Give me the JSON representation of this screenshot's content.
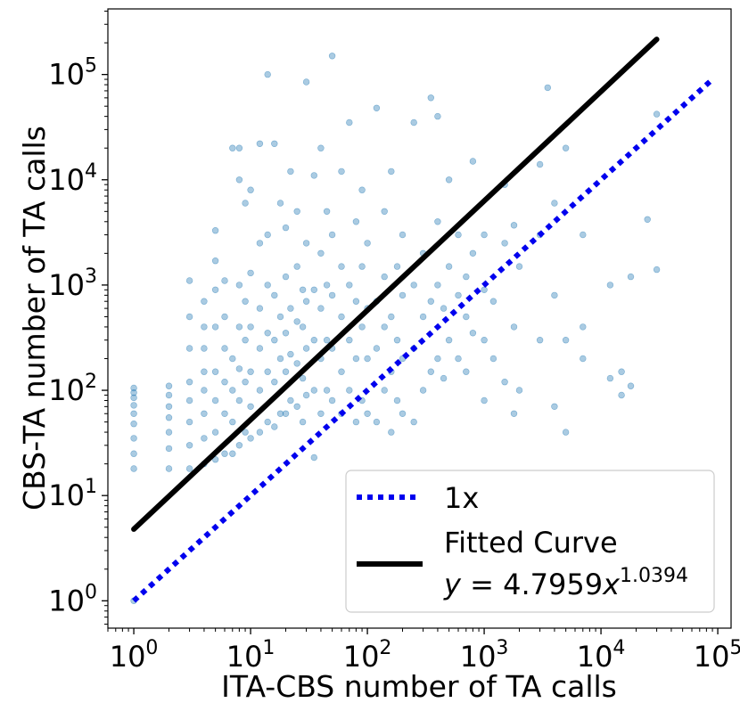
{
  "chart_data": {
    "type": "scatter",
    "title": "",
    "xlabel": "ITA-CBS number of TA calls",
    "ylabel": "CBS-TA number of TA calls",
    "x_scale": "log",
    "y_scale": "log",
    "xlim": [
      0.6,
      130000
    ],
    "ylim": [
      0.55,
      420000
    ],
    "x_tick_values": [
      1,
      10,
      100,
      1000,
      10000,
      100000
    ],
    "y_tick_values": [
      1,
      10,
      100,
      1000,
      10000,
      100000
    ],
    "x_tick_labels": [
      {
        "base": "10",
        "exp": "0"
      },
      {
        "base": "10",
        "exp": "1"
      },
      {
        "base": "10",
        "exp": "2"
      },
      {
        "base": "10",
        "exp": "3"
      },
      {
        "base": "10",
        "exp": "4"
      },
      {
        "base": "10",
        "exp": "5"
      }
    ],
    "y_tick_labels": [
      {
        "base": "10",
        "exp": "0"
      },
      {
        "base": "10",
        "exp": "1"
      },
      {
        "base": "10",
        "exp": "2"
      },
      {
        "base": "10",
        "exp": "3"
      },
      {
        "base": "10",
        "exp": "4"
      },
      {
        "base": "10",
        "exp": "5"
      }
    ],
    "colors": {
      "points": "#1f77b4",
      "fit_line": "#000000",
      "identity_line": "#0000ee"
    },
    "series": [
      {
        "name": "1x",
        "kind": "line",
        "style": "dotted",
        "equation": "y = x",
        "x": [
          1,
          90000
        ],
        "y": [
          1,
          90000
        ]
      },
      {
        "name": "Fitted Curve",
        "kind": "line",
        "style": "solid",
        "equation_parts": {
          "lhs": "y",
          "eq": " = 4.7959",
          "var": "x",
          "exp": "1.0394"
        },
        "coefficient": 4.7959,
        "exponent": 1.0394,
        "x_range": [
          1,
          30000
        ]
      },
      {
        "name": "points",
        "kind": "scatter",
        "points": [
          [
            1,
            1
          ],
          [
            1,
            18
          ],
          [
            1,
            25
          ],
          [
            1,
            35
          ],
          [
            1,
            48
          ],
          [
            1,
            60
          ],
          [
            1,
            72
          ],
          [
            1,
            85
          ],
          [
            1,
            95
          ],
          [
            1,
            105
          ],
          [
            2,
            18
          ],
          [
            2,
            28
          ],
          [
            2,
            40
          ],
          [
            2,
            55
          ],
          [
            2,
            70
          ],
          [
            2,
            90
          ],
          [
            2,
            110
          ],
          [
            3,
            18
          ],
          [
            3,
            30
          ],
          [
            3,
            50
          ],
          [
            3,
            80
          ],
          [
            3,
            120
          ],
          [
            3,
            250
          ],
          [
            3,
            500
          ],
          [
            3,
            1100
          ],
          [
            4,
            20
          ],
          [
            4,
            35
          ],
          [
            4,
            60
          ],
          [
            4,
            100
          ],
          [
            4,
            150
          ],
          [
            4,
            250
          ],
          [
            4,
            400
          ],
          [
            4,
            700
          ],
          [
            5,
            22
          ],
          [
            5,
            40
          ],
          [
            5,
            80
          ],
          [
            5,
            150
          ],
          [
            5,
            400
          ],
          [
            5,
            900
          ],
          [
            5,
            1700
          ],
          [
            5,
            3300
          ],
          [
            6,
            25
          ],
          [
            6,
            60
          ],
          [
            6,
            120
          ],
          [
            6,
            250
          ],
          [
            6,
            500
          ],
          [
            6,
            1100
          ],
          [
            7,
            25
          ],
          [
            7,
            50
          ],
          [
            7,
            100
          ],
          [
            7,
            200
          ],
          [
            7,
            20000
          ],
          [
            8,
            30
          ],
          [
            8,
            80
          ],
          [
            8,
            160
          ],
          [
            8,
            400
          ],
          [
            8,
            1000
          ],
          [
            8,
            10000
          ],
          [
            8,
            20000
          ],
          [
            9,
            40
          ],
          [
            9,
            120
          ],
          [
            9,
            300
          ],
          [
            9,
            700
          ],
          [
            9,
            6000
          ],
          [
            10,
            35
          ],
          [
            10,
            70
          ],
          [
            10,
            150
          ],
          [
            10,
            400
          ],
          [
            10,
            1300
          ],
          [
            10,
            8000
          ],
          [
            12,
            40
          ],
          [
            12,
            100
          ],
          [
            12,
            250
          ],
          [
            12,
            600
          ],
          [
            12,
            2500
          ],
          [
            12,
            22000
          ],
          [
            14,
            50
          ],
          [
            14,
            150
          ],
          [
            14,
            350
          ],
          [
            14,
            1000
          ],
          [
            14,
            3000
          ],
          [
            14,
            100000
          ],
          [
            16,
            45
          ],
          [
            16,
            120
          ],
          [
            16,
            300
          ],
          [
            16,
            800
          ],
          [
            16,
            22000
          ],
          [
            18,
            60
          ],
          [
            18,
            200
          ],
          [
            18,
            500
          ],
          [
            18,
            6000
          ],
          [
            20,
            60
          ],
          [
            20,
            150
          ],
          [
            20,
            350
          ],
          [
            20,
            1200
          ],
          [
            20,
            3500
          ],
          [
            22,
            80
          ],
          [
            22,
            220
          ],
          [
            22,
            600
          ],
          [
            22,
            12000
          ],
          [
            25,
            70
          ],
          [
            25,
            180
          ],
          [
            25,
            450
          ],
          [
            25,
            1500
          ],
          [
            25,
            5000
          ],
          [
            28,
            50
          ],
          [
            28,
            130
          ],
          [
            28,
            400
          ],
          [
            28,
            900
          ],
          [
            30,
            90
          ],
          [
            30,
            250
          ],
          [
            30,
            700
          ],
          [
            30,
            2500
          ],
          [
            30,
            85000
          ],
          [
            35,
            23
          ],
          [
            35,
            100
          ],
          [
            35,
            300
          ],
          [
            35,
            900
          ],
          [
            35,
            11000
          ],
          [
            40,
            60
          ],
          [
            40,
            200
          ],
          [
            40,
            600
          ],
          [
            40,
            2000
          ],
          [
            40,
            20000
          ],
          [
            45,
            100
          ],
          [
            45,
            300
          ],
          [
            45,
            1000
          ],
          [
            45,
            5000
          ],
          [
            50,
            80
          ],
          [
            50,
            250
          ],
          [
            50,
            800
          ],
          [
            50,
            3000
          ],
          [
            50,
            150000
          ],
          [
            60,
            60
          ],
          [
            60,
            150
          ],
          [
            60,
            500
          ],
          [
            60,
            1500
          ],
          [
            60,
            12000
          ],
          [
            70,
            100
          ],
          [
            70,
            300
          ],
          [
            70,
            1000
          ],
          [
            70,
            35000
          ],
          [
            80,
            50
          ],
          [
            80,
            200
          ],
          [
            80,
            700
          ],
          [
            80,
            4000
          ],
          [
            90,
            80
          ],
          [
            90,
            400
          ],
          [
            90,
            1500
          ],
          [
            90,
            8000
          ],
          [
            100,
            60
          ],
          [
            100,
            200
          ],
          [
            100,
            600
          ],
          [
            100,
            2500
          ],
          [
            120,
            50
          ],
          [
            120,
            250
          ],
          [
            120,
            700
          ],
          [
            120,
            48000
          ],
          [
            140,
            100
          ],
          [
            140,
            400
          ],
          [
            140,
            1200
          ],
          [
            140,
            5000
          ],
          [
            160,
            40
          ],
          [
            160,
            150
          ],
          [
            160,
            500
          ],
          [
            160,
            12000
          ],
          [
            180,
            80
          ],
          [
            180,
            300
          ],
          [
            180,
            1500
          ],
          [
            200,
            60
          ],
          [
            200,
            200
          ],
          [
            200,
            800
          ],
          [
            200,
            3000
          ],
          [
            250,
            50
          ],
          [
            250,
            250
          ],
          [
            250,
            1000
          ],
          [
            250,
            35000
          ],
          [
            300,
            100
          ],
          [
            300,
            500
          ],
          [
            300,
            2000
          ],
          [
            350,
            150
          ],
          [
            350,
            700
          ],
          [
            350,
            60000
          ],
          [
            400,
            200
          ],
          [
            400,
            1000
          ],
          [
            400,
            4000
          ],
          [
            400,
            40000
          ],
          [
            450,
            130
          ],
          [
            450,
            600
          ],
          [
            500,
            300
          ],
          [
            500,
            1500
          ],
          [
            500,
            10000
          ],
          [
            600,
            200
          ],
          [
            600,
            800
          ],
          [
            600,
            3000
          ],
          [
            700,
            150
          ],
          [
            700,
            500
          ],
          [
            700,
            1200
          ],
          [
            800,
            350
          ],
          [
            800,
            2000
          ],
          [
            800,
            15000
          ],
          [
            1000,
            80
          ],
          [
            1000,
            300
          ],
          [
            1000,
            900
          ],
          [
            1000,
            3000
          ],
          [
            1200,
            200
          ],
          [
            1200,
            700
          ],
          [
            1500,
            120
          ],
          [
            1500,
            2500
          ],
          [
            1500,
            9000
          ],
          [
            1800,
            60
          ],
          [
            1800,
            400
          ],
          [
            1800,
            3700
          ],
          [
            2000,
            100
          ],
          [
            2000,
            1500
          ],
          [
            3000,
            300
          ],
          [
            3000,
            3000
          ],
          [
            3000,
            14000
          ],
          [
            3500,
            75000
          ],
          [
            4000,
            70
          ],
          [
            4000,
            800
          ],
          [
            4000,
            6000
          ],
          [
            5000,
            40
          ],
          [
            5000,
            300
          ],
          [
            5000,
            20000
          ],
          [
            7000,
            200
          ],
          [
            7000,
            400
          ],
          [
            7000,
            3000
          ],
          [
            12000,
            130
          ],
          [
            12000,
            1000
          ],
          [
            15000,
            90
          ],
          [
            15000,
            150
          ],
          [
            18000,
            110
          ],
          [
            18000,
            1200
          ],
          [
            25000,
            4200
          ],
          [
            30000,
            1400
          ],
          [
            30000,
            42000
          ]
        ]
      }
    ],
    "legend": {
      "position": "lower-right",
      "entries": [
        {
          "label": "1x"
        },
        {
          "label": "Fitted Curve"
        }
      ]
    }
  }
}
